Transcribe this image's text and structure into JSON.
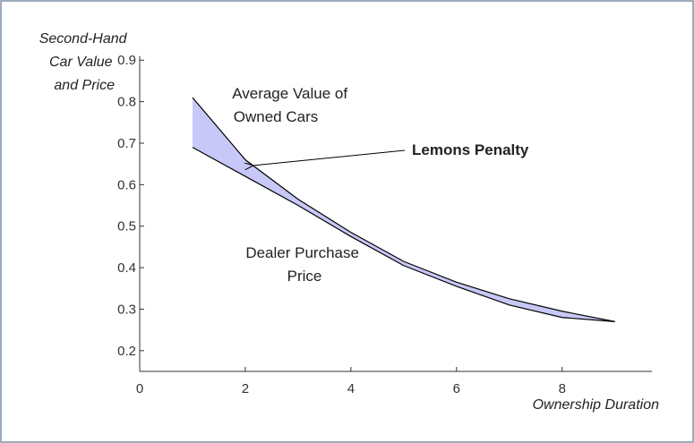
{
  "chart_data": {
    "type": "line",
    "y_label": [
      "Second-Hand",
      "Car Value",
      "and Price"
    ],
    "x_label": "Ownership Duration",
    "x": [
      1,
      2,
      3,
      4,
      5,
      6,
      7,
      8,
      9
    ],
    "series": [
      {
        "name": "Average Value of Owned Cars",
        "color": "#000000",
        "values": [
          0.81,
          0.66,
          0.565,
          0.485,
          0.415,
          0.365,
          0.325,
          0.295,
          0.27
        ]
      },
      {
        "name": "Dealer Purchase Price",
        "color": "#000000",
        "values": [
          0.69,
          0.62,
          0.55,
          0.475,
          0.405,
          0.355,
          0.31,
          0.28,
          0.27
        ]
      }
    ],
    "fill_between_color": "#c8c8f8",
    "annotations": {
      "upper": [
        "Average Value of",
        "Owned Cars"
      ],
      "lower": [
        "Dealer Purchase",
        "Price"
      ],
      "penalty": "Lemons Penalty"
    },
    "xlim": [
      0,
      9.7
    ],
    "xticks": [
      0,
      2,
      4,
      6,
      8
    ],
    "ylim": [
      0.15,
      0.91
    ],
    "yticks": [
      0.2,
      0.3,
      0.4,
      0.5,
      0.6,
      0.7,
      0.8,
      0.9
    ]
  }
}
